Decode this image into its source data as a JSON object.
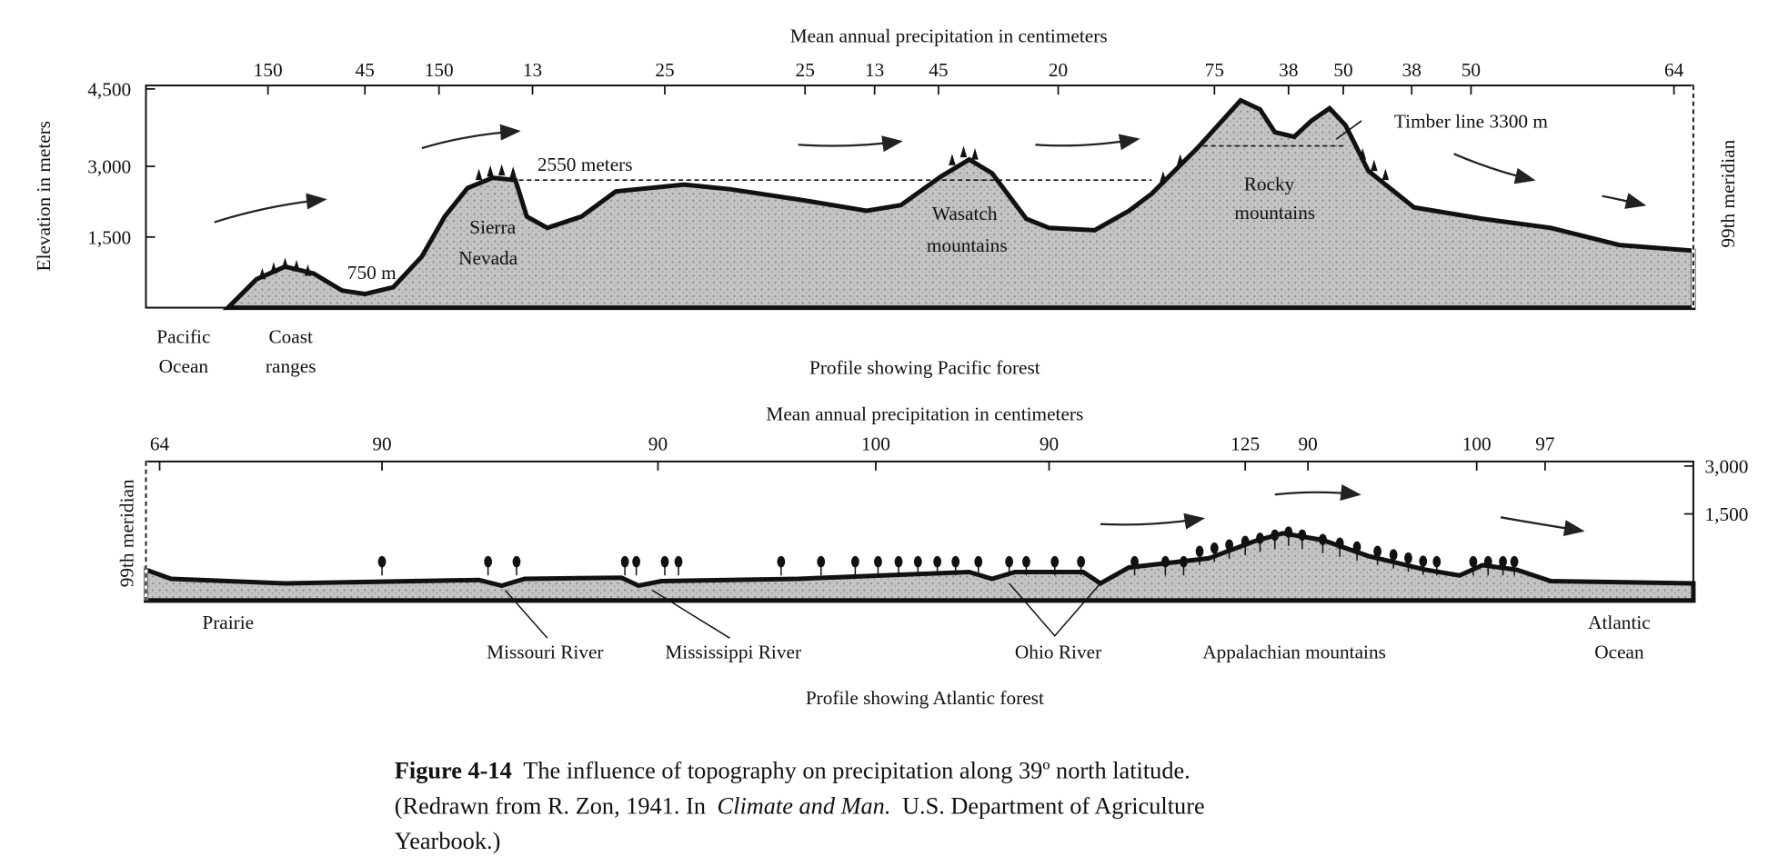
{
  "pacific_profile": {
    "axis_title": "Mean annual precipitation in centimeters",
    "precipitation_labels": [
      "150",
      "45",
      "150",
      "13",
      "25",
      "25",
      "13",
      "45",
      "20",
      "75",
      "38",
      "50",
      "38",
      "50",
      "64"
    ],
    "y_axis_title": "Elevation in meters",
    "yticks": [
      "4,500",
      "3,000",
      "1,500"
    ],
    "right_label": "99th meridian",
    "annotations": [
      "2550 meters",
      "750 m",
      "Timber line 3300 m"
    ],
    "mountain_labels": [
      [
        "Sierra",
        "Nevada"
      ],
      [
        "Wasatch",
        "mountains"
      ],
      [
        "Rocky",
        "mountains"
      ]
    ],
    "place_labels": [
      [
        "Pacific",
        "Ocean"
      ],
      [
        "Coast",
        "ranges"
      ]
    ],
    "caption": "Profile showing Pacific forest"
  },
  "atlantic_profile": {
    "axis_title": "Mean annual precipitation in centimeters",
    "precipitation_labels": [
      "64",
      "90",
      "90",
      "100",
      "90",
      "125",
      "90",
      "100",
      "97"
    ],
    "yticks": [
      "3,000",
      "1,500"
    ],
    "left_label": "99th meridian",
    "place_labels": [
      [
        "Prairie"
      ],
      [
        "Missouri River"
      ],
      [
        "Mississippi River"
      ],
      [
        "Ohio River"
      ],
      [
        "Appalachian mountains"
      ],
      [
        "Atlantic",
        "Ocean"
      ]
    ],
    "caption": "Profile showing Atlantic forest"
  },
  "figure_caption": {
    "label": "Figure 4-14",
    "line_1": "The influence of topography on precipitation along 39º north latitude.",
    "line_2_start": "(Redrawn from R. Zon, 1941.  In",
    "book_title": "Climate and Man.",
    "line_2_end": "U.S. Department of Agriculture",
    "line_3": "Yearbook.)"
  }
}
